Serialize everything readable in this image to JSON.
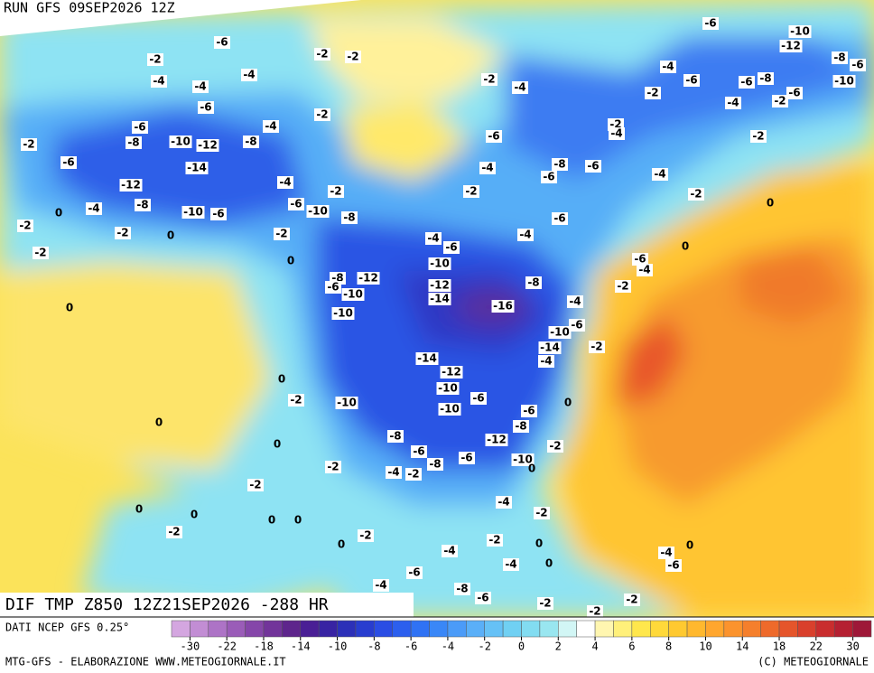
{
  "header": {
    "run": "RUN GFS 09SEP2026 12Z"
  },
  "map": {
    "title": "DIF TMP Z850 12Z21SEP2026 -288 HR",
    "contour_labels": [
      -6,
      -2,
      -2,
      -2,
      -4,
      -4,
      -4,
      -6,
      -2,
      -4,
      -6,
      -8,
      -10,
      -12,
      -8,
      -2,
      -6,
      -14,
      -12,
      -8,
      -10,
      -6,
      -4,
      0,
      -4,
      -2,
      -6,
      -10,
      -8,
      -2,
      0,
      -2,
      -2,
      -2,
      0,
      0,
      -6,
      -10,
      -12,
      -8,
      -6,
      -4,
      -2,
      -4,
      -6,
      -6,
      -8,
      -10,
      -2,
      -4,
      -2,
      -6,
      -2,
      -4,
      -6,
      -2,
      -4,
      -8,
      -6,
      -6,
      -4,
      -2,
      -2,
      0,
      -6,
      0,
      -4,
      -6,
      -4,
      -6,
      -4,
      -10,
      -8,
      -12,
      -6,
      -10,
      -12,
      -14,
      -16,
      -8,
      -2,
      -4,
      -10,
      -10,
      -6,
      -14,
      -4,
      -2,
      -14,
      -12,
      -10,
      -6,
      0,
      -2,
      -10,
      -10,
      -6,
      -8,
      0,
      0,
      0,
      -8,
      -12,
      -2,
      -6,
      -8,
      -6,
      -10,
      0,
      -4,
      -2,
      -2,
      -2,
      -4,
      -2,
      0,
      0,
      -2,
      0,
      0,
      -2,
      0,
      -2,
      0,
      -4,
      -4,
      0,
      -6,
      -6,
      -4,
      0,
      -4,
      -8,
      -6,
      -2,
      -2,
      -2
    ]
  },
  "colorbar": {
    "source": "DATI NCEP GFS 0.25°",
    "colors": [
      "#d4a6e0",
      "#c28dd4",
      "#ad73c6",
      "#9a5cb8",
      "#8546a9",
      "#72349a",
      "#5e258c",
      "#4a1f95",
      "#3823a3",
      "#2c30b8",
      "#283dcf",
      "#2a4de4",
      "#2c5fee",
      "#2f72f4",
      "#3a87f7",
      "#4b9bf8",
      "#5aaff8",
      "#66c1f6",
      "#70d0f3",
      "#82dcf1",
      "#99e6f0",
      "#d2f6f5",
      "#ffffff",
      "#fff6b0",
      "#fff07a",
      "#ffe74c",
      "#ffd93a",
      "#ffc930",
      "#ffb82e",
      "#ffa62e",
      "#fb932d",
      "#f57f2c",
      "#ee6a2b",
      "#e5552b",
      "#d9402c",
      "#c92d2e",
      "#b52032",
      "#9e1838"
    ],
    "ticks": [
      -30,
      -22,
      -18,
      -14,
      -10,
      -8,
      -6,
      -4,
      -2,
      0,
      2,
      4,
      6,
      8,
      10,
      14,
      18,
      22,
      30
    ]
  },
  "footer": {
    "left": "MTG-GFS - ELABORAZIONE WWW.METEOGIORNALE.IT",
    "right": "(C) METEOGIORNALE"
  }
}
